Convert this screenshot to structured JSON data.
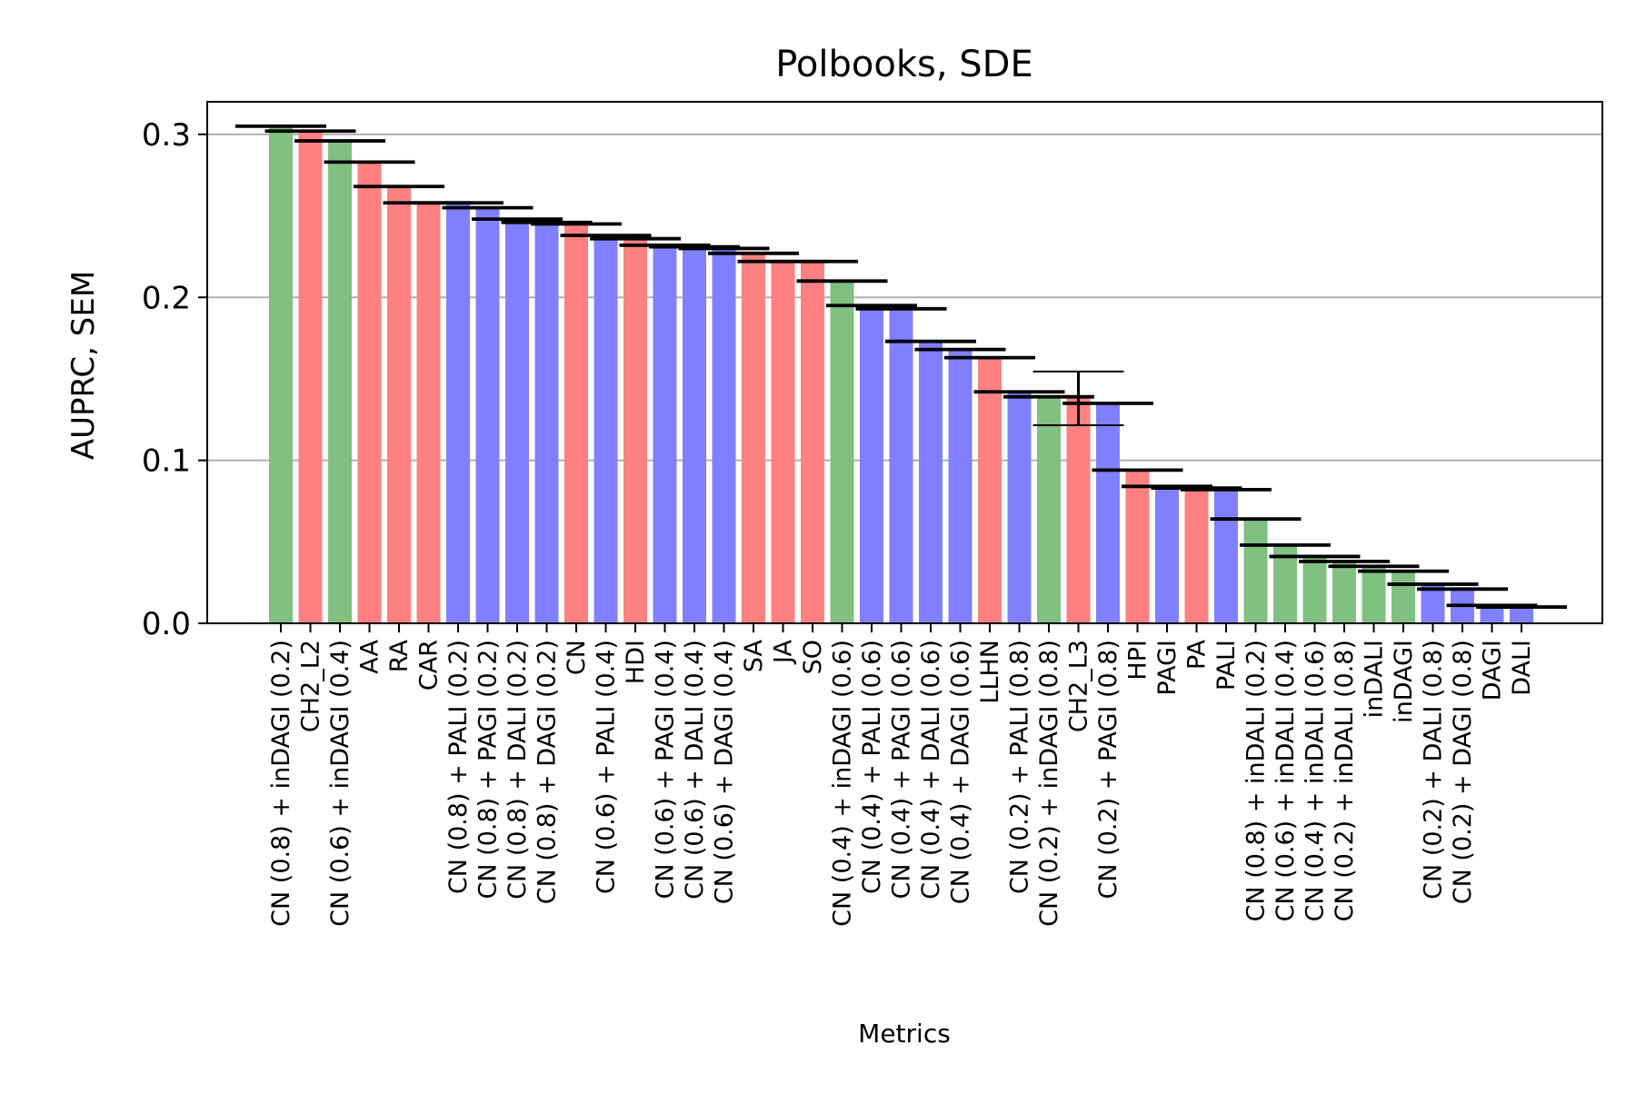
{
  "chart_data": {
    "type": "bar",
    "title": "Polbooks, SDE",
    "xlabel": "Metrics",
    "ylabel": "AUPRC, SEM",
    "ylim": [
      0,
      0.32
    ],
    "yticks": [
      0.0,
      0.1,
      0.2,
      0.3
    ],
    "ytick_labels": [
      "0.0",
      "0.1",
      "0.2",
      "0.3"
    ],
    "grid": "horizontal",
    "colors": {
      "green": "#80c080",
      "red": "#ff8080",
      "blue": "#8080ff",
      "error": "#000000",
      "grid": "#b0b0b0"
    },
    "categories": [
      "CN (0.8) + inDAGI (0.2)",
      "CH2_L2",
      "CN (0.6) + inDAGI (0.4)",
      "AA",
      "RA",
      "CAR",
      "CN (0.8) + PALI (0.2)",
      "CN (0.8) + PAGI (0.2)",
      "CN (0.8) + DALI (0.2)",
      "CN (0.8) + DAGI (0.2)",
      "CN",
      "CN (0.6) + PALI (0.4)",
      "HDI",
      "CN (0.6) + PAGI (0.4)",
      "CN (0.6) + DALI (0.4)",
      "CN (0.6) + DAGI (0.4)",
      "SA",
      "JA",
      "SO",
      "CN (0.4) + inDAGI (0.6)",
      "CN (0.4) + PALI (0.6)",
      "CN (0.4) + PAGI (0.6)",
      "CN (0.4) + DALI (0.6)",
      "CN (0.4) + DAGI (0.6)",
      "LLHN",
      "CN (0.2) + PALI (0.8)",
      "CN (0.2) + inDAGI (0.8)",
      "CH2_L3",
      "CN (0.2) + PAGI (0.8)",
      "HPI",
      "PAGI",
      "PA",
      "PALI",
      "CN (0.8) + inDALI (0.2)",
      "CN (0.6) + inDALI (0.4)",
      "CN (0.4) + inDALI (0.6)",
      "CN (0.2) + inDALI (0.8)",
      "inDALI",
      "inDAGI",
      "CN (0.2) + DALI (0.8)",
      "CN (0.2) + DAGI (0.8)",
      "DAGI",
      "DALI"
    ],
    "values": [
      0.305,
      0.302,
      0.296,
      0.283,
      0.268,
      0.258,
      0.258,
      0.255,
      0.248,
      0.246,
      0.245,
      0.238,
      0.236,
      0.232,
      0.231,
      0.23,
      0.227,
      0.222,
      0.222,
      0.21,
      0.195,
      0.193,
      0.173,
      0.168,
      0.163,
      0.142,
      0.139,
      0.138,
      0.135,
      0.094,
      0.084,
      0.083,
      0.082,
      0.064,
      0.048,
      0.041,
      0.038,
      0.035,
      0.032,
      0.024,
      0.021,
      0.011,
      0.01
    ],
    "errors": [
      0.0005,
      0.0005,
      0.0005,
      0.0005,
      0.0005,
      0.0005,
      0.0005,
      0.0005,
      0.0005,
      0.0005,
      0.0005,
      0.0005,
      0.0005,
      0.0005,
      0.0005,
      0.0005,
      0.0005,
      0.0005,
      0.0005,
      0.0005,
      0.0005,
      0.0005,
      0.0005,
      0.0005,
      0.0005,
      0.0005,
      0.0005,
      0.0165,
      0.0005,
      0.0005,
      0.0005,
      0.0005,
      0.0005,
      0.0005,
      0.0005,
      0.0005,
      0.0005,
      0.0005,
      0.0005,
      0.0005,
      0.0005,
      0.0005,
      0.0005
    ],
    "bar_colors": [
      "green",
      "red",
      "green",
      "red",
      "red",
      "red",
      "blue",
      "blue",
      "blue",
      "blue",
      "red",
      "blue",
      "red",
      "blue",
      "blue",
      "blue",
      "red",
      "red",
      "red",
      "green",
      "blue",
      "blue",
      "blue",
      "blue",
      "red",
      "blue",
      "green",
      "red",
      "blue",
      "red",
      "blue",
      "red",
      "blue",
      "green",
      "green",
      "green",
      "green",
      "green",
      "green",
      "blue",
      "blue",
      "blue",
      "blue"
    ]
  }
}
